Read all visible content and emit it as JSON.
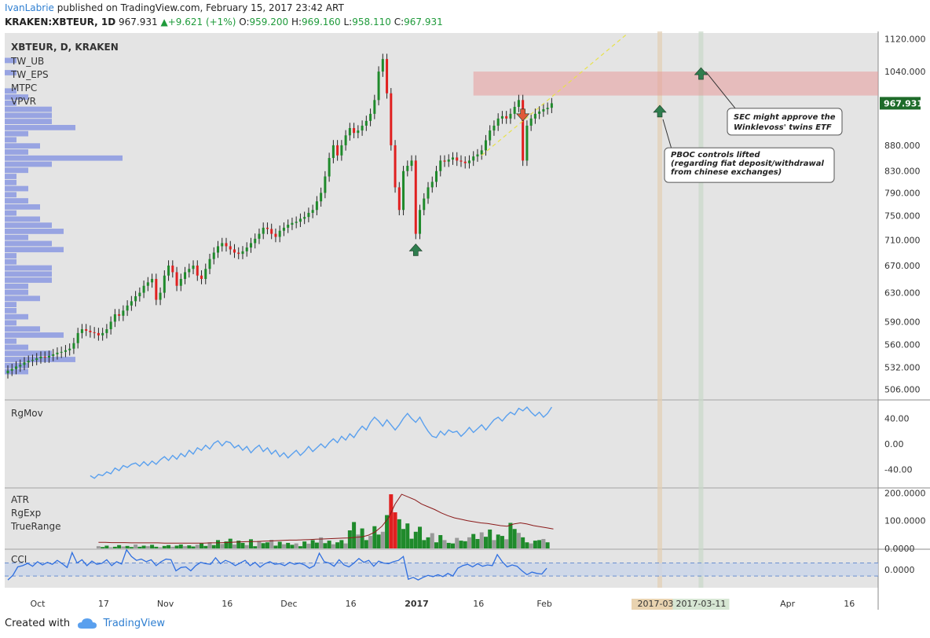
{
  "header": {
    "author": "IvanLabrie",
    "published_text": " published on TradingView.com, February 15, 2017 23:42 ART",
    "symbol": "KRAKEN:XBTEUR, 1D",
    "last": "967.931",
    "change": "+9.621 (+1%)",
    "o_label": "O:",
    "o_value": "959.200",
    "h_label": "H:",
    "h_value": "969.160",
    "l_label": "L:",
    "l_value": "958.110",
    "c_label": "C:",
    "c_value": "967.931"
  },
  "footer": {
    "created_with": "Created with",
    "brand": "TradingView"
  },
  "colors": {
    "background": "#e4e4e4",
    "up": "#1f8a2b",
    "down": "#e02020",
    "line_blue": "#5aa0ee",
    "volume_profile": "#5a6fe0",
    "price_tag": "#1e6b2a",
    "resistance_zone": "#e89a9a",
    "arrow_up": "#2f7d4e",
    "arrow_down": "#e05a3a"
  },
  "chart_data": [
    {
      "type": "candlestick",
      "title": "XBTEUR, D, KRAKEN",
      "indicators": [
        "TW_UB",
        "TW_EPS",
        "MTPC",
        "VPVR"
      ],
      "price_axis": [
        "1120.000",
        "1040.000",
        "967.931",
        "880.000",
        "830.000",
        "790.000",
        "750.000",
        "710.000",
        "670.000",
        "630.000",
        "590.000",
        "560.000",
        "532.000",
        "506.000"
      ],
      "ylim": [
        495,
        1135
      ],
      "log_scale": true,
      "last_price": 967.931,
      "x_ticks": [
        "Oct",
        "17",
        "Nov",
        "16",
        "Dec",
        "16",
        "2017",
        "16",
        "Feb",
        "2017-03-0",
        "2017-03-11",
        "Apr",
        "16"
      ],
      "x_tick_dates": [
        "2016-10-01",
        "2016-10-17",
        "2016-11-01",
        "2016-11-16",
        "2016-12-01",
        "2016-12-16",
        "2017-01-01",
        "2017-01-16",
        "2017-02-01",
        "2017-03-01",
        "2017-03-11",
        "2017-04-01",
        "2017-04-16"
      ],
      "x_range": [
        "2016-09-23",
        "2017-04-23"
      ],
      "markers_dates": [
        "2017-03-01",
        "2017-03-11"
      ],
      "series": [
        {
          "name": "close",
          "dates_start": "2016-09-23",
          "values": [
            528,
            530,
            533,
            535,
            538,
            540,
            541,
            543,
            545,
            544,
            546,
            548,
            550,
            551,
            553,
            555,
            562,
            575,
            580,
            578,
            576,
            575,
            572,
            575,
            580,
            590,
            600,
            598,
            605,
            612,
            618,
            625,
            630,
            640,
            645,
            650,
            620,
            630,
            655,
            670,
            660,
            640,
            650,
            660,
            665,
            670,
            655,
            650,
            665,
            680,
            690,
            700,
            705,
            700,
            695,
            690,
            688,
            692,
            698,
            705,
            712,
            720,
            730,
            728,
            720,
            715,
            725,
            730,
            735,
            738,
            740,
            745,
            748,
            755,
            760,
            775,
            790,
            820,
            855,
            880,
            860,
            880,
            900,
            915,
            905,
            910,
            920,
            930,
            945,
            975,
            1040,
            1070,
            990,
            880,
            800,
            760,
            830,
            840,
            850,
            720,
            760,
            780,
            800,
            810,
            830,
            850,
            848,
            852,
            856,
            850,
            848,
            845,
            850,
            858,
            862,
            870,
            890,
            910,
            920,
            935,
            940,
            935,
            945,
            960,
            975,
            850,
            920,
            935,
            945,
            950,
            955,
            958,
            967.931
          ]
        }
      ],
      "annotations": [
        "SEC might approve the Winklevoss' twins ETF",
        "PBOC controls lifted (regarding fiat deposit/withdrawal from chinese exchanges)"
      ]
    },
    {
      "type": "line",
      "title": "RgMov",
      "ticks": [
        "40.00",
        "0.00",
        "-40.00"
      ],
      "ylim": [
        -68,
        68
      ],
      "series": [
        {
          "name": "RgMov",
          "values": [
            -50,
            -54,
            -48,
            -50,
            -44,
            -47,
            -38,
            -42,
            -34,
            -37,
            -32,
            -30,
            -35,
            -28,
            -34,
            -27,
            -32,
            -25,
            -20,
            -26,
            -18,
            -24,
            -15,
            -20,
            -10,
            -16,
            -6,
            -10,
            -2,
            -8,
            1,
            5,
            -3,
            4,
            2,
            -6,
            -2,
            -10,
            -4,
            -14,
            -7,
            -2,
            -12,
            -6,
            -16,
            -10,
            -20,
            -14,
            -22,
            -16,
            -10,
            -18,
            -12,
            -4,
            -12,
            -6,
            0,
            -6,
            2,
            8,
            2,
            12,
            6,
            16,
            10,
            20,
            28,
            22,
            34,
            42,
            36,
            28,
            38,
            30,
            22,
            30,
            40,
            48,
            40,
            34,
            42,
            30,
            20,
            12,
            10,
            20,
            14,
            22,
            18,
            20,
            12,
            18,
            26,
            18,
            24,
            30,
            22,
            30,
            38,
            42,
            36,
            44,
            50,
            46,
            56,
            52,
            58,
            50,
            44,
            50,
            42,
            48,
            58
          ]
        }
      ]
    },
    {
      "type": "bar",
      "title": "ATR",
      "indicators": [
        "ATR",
        "RgExp",
        "TrueRange"
      ],
      "ticks": [
        "200.0000",
        "100.0000",
        "0.0000"
      ],
      "ylim": [
        0,
        215
      ],
      "series": [
        {
          "name": "TrueRange",
          "values": [
            8,
            5,
            10,
            4,
            6,
            12,
            7,
            9,
            5,
            14,
            6,
            10,
            8,
            13,
            6,
            4,
            9,
            12,
            6,
            10,
            14,
            8,
            11,
            7,
            13,
            18,
            9,
            22,
            12,
            30,
            16,
            25,
            35,
            14,
            28,
            20,
            12,
            33,
            8,
            27,
            19,
            22,
            31,
            10,
            24,
            15,
            20,
            13,
            18,
            8,
            25,
            17,
            30,
            21,
            40,
            19,
            28,
            15,
            22,
            30,
            18,
            65,
            95,
            50,
            72,
            30,
            45,
            80,
            50,
            60,
            120,
            195,
            130,
            105,
            70,
            90,
            35,
            60,
            78,
            30,
            40,
            55,
            22,
            48,
            30,
            20,
            18,
            38,
            28,
            26,
            40,
            52,
            34,
            58,
            42,
            68,
            30,
            50,
            45,
            33,
            92,
            70,
            56,
            40,
            22,
            18,
            28,
            30,
            34,
            22
          ]
        },
        {
          "name": "ATR",
          "values": [
            22,
            22,
            21,
            21,
            21,
            20,
            20,
            20,
            20,
            20,
            19,
            19,
            19,
            19,
            19,
            19,
            19,
            20,
            20,
            21,
            22,
            23,
            24,
            25,
            25,
            26,
            27,
            28,
            29,
            30,
            30,
            31,
            32,
            33,
            34,
            35,
            36,
            37,
            38,
            40,
            42,
            48,
            60,
            80,
            110,
            160,
            195,
            185,
            175,
            160,
            150,
            140,
            128,
            118,
            110,
            105,
            100,
            96,
            92,
            90,
            86,
            82,
            80,
            88,
            92,
            88,
            82,
            78,
            74,
            70
          ]
        }
      ]
    },
    {
      "type": "line",
      "title": "CCI",
      "ticks": [
        "0.0000"
      ],
      "band": [
        -100,
        100
      ],
      "ylim": [
        -280,
        300
      ],
      "series": [
        {
          "name": "CCI",
          "values": [
            -160,
            -90,
            40,
            60,
            95,
            50,
            120,
            70,
            110,
            80,
            140,
            90,
            30,
            260,
            100,
            150,
            60,
            130,
            80,
            95,
            150,
            60,
            120,
            85,
            305,
            200,
            140,
            160,
            120,
            150,
            60,
            120,
            160,
            150,
            -20,
            30,
            40,
            -20,
            60,
            110,
            90,
            80,
            180,
            90,
            140,
            110,
            60,
            100,
            140,
            60,
            110,
            35,
            90,
            120,
            80,
            90,
            60,
            110,
            80,
            100,
            70,
            20,
            60,
            250,
            120,
            100,
            50,
            150,
            70,
            40,
            100,
            170,
            110,
            140,
            50,
            130,
            100,
            90,
            120,
            140,
            200,
            -150,
            -120,
            -160,
            -120,
            -90,
            -110,
            -80,
            -110,
            -60,
            -100,
            20,
            60,
            80,
            40,
            90,
            50,
            70,
            60,
            230,
            120,
            40,
            70,
            50,
            -20,
            -80,
            -40,
            -60,
            -70,
            20
          ]
        }
      ]
    }
  ]
}
